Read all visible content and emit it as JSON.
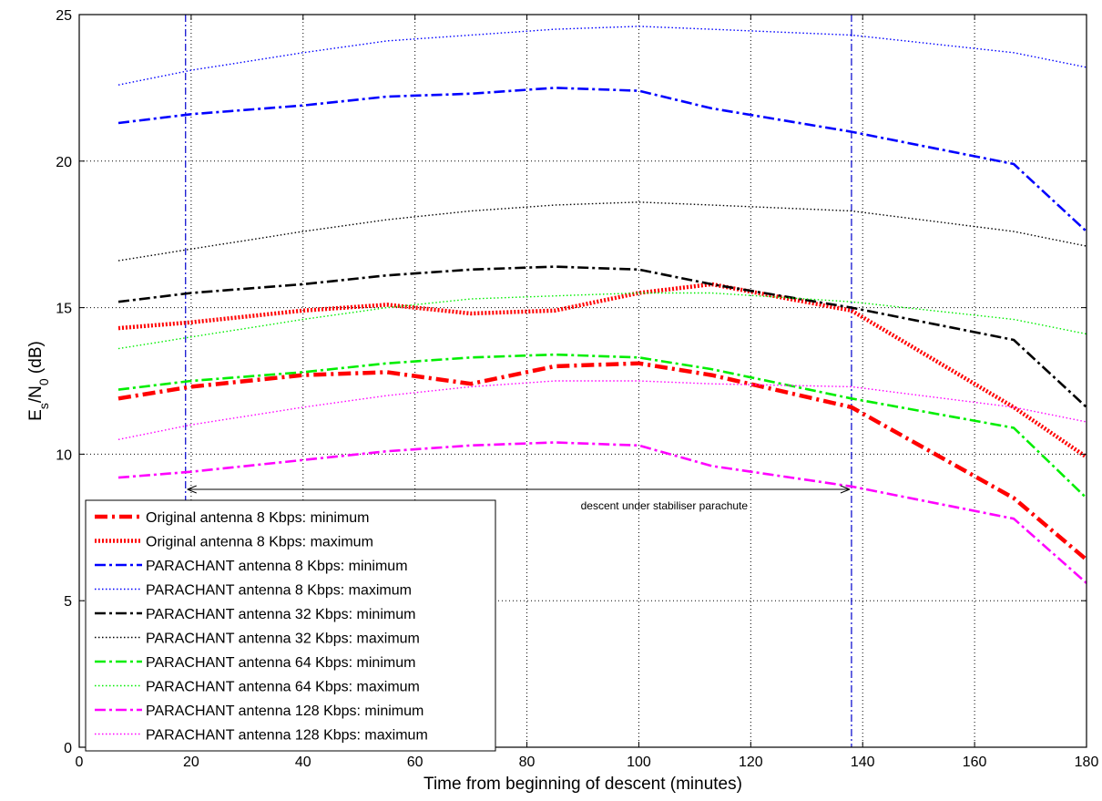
{
  "chart_data": {
    "type": "line",
    "title": "",
    "xlabel": "Time from beginning of descent (minutes)",
    "ylabel": {
      "main": "E",
      "sub1": "s",
      "mid": "/N",
      "sub2": "0",
      "tail": " (dB)"
    },
    "xlim": [
      0,
      180
    ],
    "ylim": [
      0,
      25
    ],
    "xticks": [
      0,
      20,
      40,
      60,
      80,
      100,
      120,
      140,
      160,
      180
    ],
    "yticks": [
      0,
      5,
      10,
      15,
      20,
      25
    ],
    "grid": true,
    "legend_position": "bottom-left",
    "x": [
      7,
      20,
      40,
      55,
      70,
      85,
      100,
      113,
      138,
      167,
      180
    ],
    "series": [
      {
        "name": "Original antenna 8 Kbps: minimum",
        "color": "#ff0000",
        "style": "dashdot",
        "width": "thick",
        "values": [
          11.9,
          12.3,
          12.7,
          12.8,
          12.4,
          13.0,
          13.1,
          12.7,
          11.6,
          8.5,
          6.4
        ]
      },
      {
        "name": "Original antenna 8 Kbps: maximum",
        "color": "#ff0000",
        "style": "dotted",
        "width": "thick",
        "values": [
          14.3,
          14.5,
          14.9,
          15.1,
          14.8,
          14.9,
          15.5,
          15.8,
          14.9,
          11.6,
          9.9
        ]
      },
      {
        "name": "PARACHANT antenna 8 Kbps: minimum",
        "color": "#0000ff",
        "style": "dashdot",
        "width": "medium",
        "values": [
          21.3,
          21.6,
          21.9,
          22.2,
          22.3,
          22.5,
          22.4,
          21.8,
          21.0,
          19.9,
          17.6
        ]
      },
      {
        "name": "PARACHANT antenna 8 Kbps: maximum",
        "color": "#0000ff",
        "style": "dotted",
        "width": "thin",
        "values": [
          22.6,
          23.1,
          23.7,
          24.1,
          24.3,
          24.5,
          24.6,
          24.5,
          24.3,
          23.7,
          23.2
        ]
      },
      {
        "name": "PARACHANT antenna 32 Kbps: minimum",
        "color": "#000000",
        "style": "dashdot",
        "width": "medium",
        "values": [
          15.2,
          15.5,
          15.8,
          16.1,
          16.3,
          16.4,
          16.3,
          15.8,
          15.0,
          13.9,
          11.6
        ]
      },
      {
        "name": "PARACHANT antenna 32 Kbps: maximum",
        "color": "#000000",
        "style": "dotted",
        "width": "thin",
        "values": [
          16.6,
          17.0,
          17.6,
          18.0,
          18.3,
          18.5,
          18.6,
          18.5,
          18.3,
          17.6,
          17.1
        ]
      },
      {
        "name": "PARACHANT antenna 64 Kbps: minimum",
        "color": "#00ee00",
        "style": "dashdot",
        "width": "medium",
        "values": [
          12.2,
          12.5,
          12.8,
          13.1,
          13.3,
          13.4,
          13.3,
          12.9,
          11.9,
          10.9,
          8.5
        ]
      },
      {
        "name": "PARACHANT antenna 64 Kbps: maximum",
        "color": "#00ee00",
        "style": "dotted",
        "width": "thin",
        "values": [
          13.6,
          14.0,
          14.6,
          15.0,
          15.3,
          15.4,
          15.5,
          15.5,
          15.2,
          14.6,
          14.1
        ]
      },
      {
        "name": "PARACHANT antenna 128 Kbps: minimum",
        "color": "#ff00ff",
        "style": "dashdot",
        "width": "medium",
        "values": [
          9.2,
          9.4,
          9.8,
          10.1,
          10.3,
          10.4,
          10.3,
          9.6,
          8.9,
          7.8,
          5.6
        ]
      },
      {
        "name": "PARACHANT antenna 128 Kbps: maximum",
        "color": "#ff00ff",
        "style": "dotted",
        "width": "thin",
        "values": [
          10.5,
          11.0,
          11.6,
          12.0,
          12.3,
          12.5,
          12.5,
          12.4,
          12.3,
          11.6,
          11.1
        ]
      }
    ],
    "vlines": [
      19,
      138
    ],
    "vline_color": "#0000cc",
    "annotation": {
      "text": "descent under stabiliser parachute",
      "x_start": 19,
      "x_end": 138,
      "y": 8.8
    }
  }
}
